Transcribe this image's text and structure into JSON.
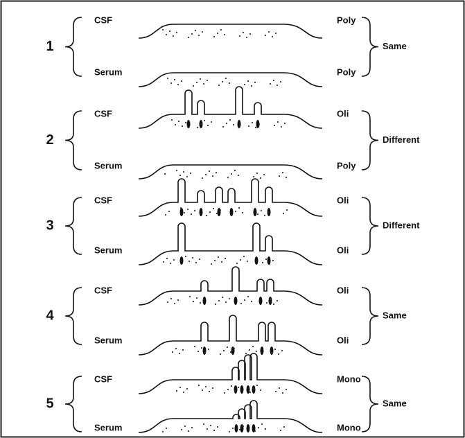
{
  "groups": [
    {
      "number": "1",
      "rows": [
        {
          "sample": "CSF",
          "pattern": "Poly"
        },
        {
          "sample": "Serum",
          "pattern": "Poly"
        }
      ],
      "result": "Same"
    },
    {
      "number": "2",
      "rows": [
        {
          "sample": "CSF",
          "pattern": "Oli"
        },
        {
          "sample": "Serum",
          "pattern": "Poly"
        }
      ],
      "result": "Different"
    },
    {
      "number": "3",
      "rows": [
        {
          "sample": "CSF",
          "pattern": "Oli"
        },
        {
          "sample": "Serum",
          "pattern": "Oli"
        }
      ],
      "result": "Different"
    },
    {
      "number": "4",
      "rows": [
        {
          "sample": "CSF",
          "pattern": "Oli"
        },
        {
          "sample": "Serum",
          "pattern": "Oli"
        }
      ],
      "result": "Same"
    },
    {
      "number": "5",
      "rows": [
        {
          "sample": "CSF",
          "pattern": "Mono"
        },
        {
          "sample": "Serum",
          "pattern": "Mono"
        }
      ],
      "result": "Same"
    }
  ]
}
